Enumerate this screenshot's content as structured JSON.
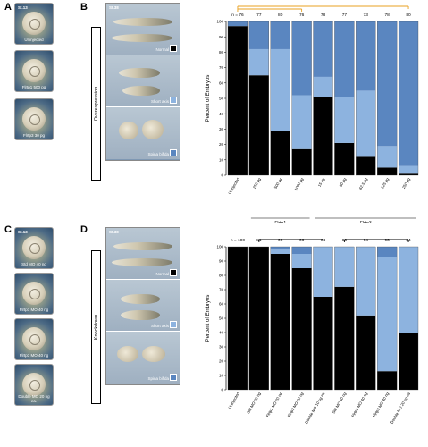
{
  "panels": {
    "A": {
      "letter": "A",
      "stage": "St.13",
      "eggs": [
        "Uninjected",
        "Flrtp1 500 pg",
        "Flrtp3 30 pg"
      ]
    },
    "B": {
      "letter": "B",
      "stage": "St.38",
      "side": "Overexpression",
      "cells": [
        "Normal",
        "Short axis",
        "Spina bifida"
      ]
    },
    "C": {
      "letter": "C",
      "stage": "St.13",
      "eggs": [
        "Std MO 40 ng",
        "Flrtp1 MO 40 ng",
        "Flrtp3 MO 40 ng",
        "Double MO 20 ng ea."
      ]
    },
    "D": {
      "letter": "D",
      "stage": "St.38",
      "side": "Knockdown",
      "cells": [
        "Normal",
        "Short axis",
        "Spina bifida"
      ]
    }
  },
  "colors": {
    "normal": "#000000",
    "short_axis": "#8db3df",
    "spina_bifida": "#5a86c0",
    "bracket_top": "#e8a020"
  },
  "chart_data": [
    {
      "type": "bar",
      "stacked": true,
      "ylabel": "Percent of Embryos",
      "ylim": [
        0,
        100
      ],
      "yticks": [
        0,
        10,
        20,
        30,
        40,
        50,
        60,
        70,
        80,
        90,
        100
      ],
      "n_labels": [
        "n = 76",
        "77",
        "80",
        "76",
        "78",
        "77",
        "73",
        "78",
        "80"
      ],
      "categories": [
        "Uninjected",
        "250 pg",
        "500 pg",
        "1000 pg",
        "15 pg",
        "30 pg",
        "62.5 pg",
        "125 pg",
        "250 pg"
      ],
      "groups": [
        {
          "label": "Flrtp1",
          "from": 1,
          "to": 3
        },
        {
          "label": "Flrtp3",
          "from": 4,
          "to": 8
        }
      ],
      "series": [
        {
          "name": "Normal",
          "color": "#000000",
          "values": [
            97,
            65,
            29,
            17,
            51,
            21,
            12,
            5,
            1
          ]
        },
        {
          "name": "Short axis",
          "color": "#8db3df",
          "values": [
            0,
            17,
            53,
            35,
            13,
            30,
            43,
            14,
            5
          ]
        },
        {
          "name": "Spina bifida",
          "color": "#5a86c0",
          "values": [
            3,
            18,
            18,
            48,
            36,
            49,
            45,
            81,
            94
          ]
        }
      ]
    },
    {
      "type": "bar",
      "stacked": true,
      "ylabel": "Percent of Embryos",
      "ylim": [
        0,
        100
      ],
      "yticks": [
        0,
        10,
        20,
        30,
        40,
        50,
        60,
        70,
        80,
        90,
        100
      ],
      "n_labels": [
        "n = 100",
        "81",
        "90",
        "96",
        "84",
        "86",
        "94",
        "93",
        "84"
      ],
      "categories": [
        "Uninjected",
        "Std MO 20 ng",
        "Flrtp1 MO 20 ng",
        "Flrtp3 MO 20 ng",
        "Double MO 10 ng ea",
        "Std MO 40 ng",
        "Flrtp1 MO 40 ng",
        "Flrtp3 MO 40 ng",
        "Double MO 20 ng ea"
      ],
      "series": [
        {
          "name": "Normal",
          "color": "#000000",
          "values": [
            100,
            100,
            95,
            85,
            65,
            72,
            52,
            13,
            40
          ]
        },
        {
          "name": "Short axis",
          "color": "#8db3df",
          "values": [
            0,
            0,
            3,
            10,
            35,
            28,
            48,
            80,
            60
          ]
        },
        {
          "name": "Spina bifida",
          "color": "#5a86c0",
          "values": [
            0,
            0,
            2,
            5,
            0,
            0,
            0,
            7,
            0
          ]
        }
      ]
    }
  ]
}
